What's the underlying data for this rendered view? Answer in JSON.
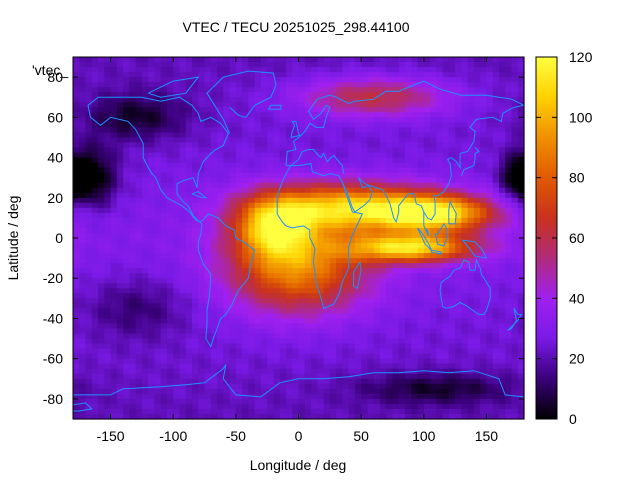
{
  "chart_data": {
    "type": "heatmap",
    "title": "VTEC / TECU 20251025_298.44100",
    "xlabel": "Longitude / deg",
    "ylabel": "Latitude / deg",
    "key_label": "'vtec_",
    "xlim": [
      -180,
      180
    ],
    "ylim": [
      -90,
      90
    ],
    "xticks": [
      -150,
      -100,
      -50,
      0,
      50,
      100,
      150
    ],
    "yticks": [
      -80,
      -60,
      -40,
      -20,
      0,
      20,
      40,
      60,
      80
    ],
    "colorbar": {
      "range": [
        0,
        120
      ],
      "ticks": [
        0,
        20,
        40,
        60,
        80,
        100,
        120
      ],
      "palette": [
        "#000000",
        "#3a007a",
        "#7a1ae6",
        "#a020f0",
        "#b02b7a",
        "#c8321e",
        "#e05a00",
        "#f09000",
        "#ffd000",
        "#ffff40"
      ]
    },
    "grid": false,
    "legend": "top-left",
    "coastline_color": "#1e90ff",
    "features": [
      {
        "lon": 40,
        "lat": 15,
        "vtec": 75,
        "sx": 70,
        "sy": 12
      },
      {
        "lon": 110,
        "lat": 12,
        "vtec": 78,
        "sx": 45,
        "sy": 9
      },
      {
        "lon": 90,
        "lat": -5,
        "vtec": 80,
        "sx": 50,
        "sy": 7
      },
      {
        "lon": 0,
        "lat": -15,
        "vtec": 62,
        "sx": 55,
        "sy": 22
      },
      {
        "lon": -20,
        "lat": 5,
        "vtec": 60,
        "sx": 30,
        "sy": 15
      },
      {
        "lon": 60,
        "lat": 70,
        "vtec": 38,
        "sx": 60,
        "sy": 10
      },
      {
        "lon": -165,
        "lat": 30,
        "vtec": -30,
        "sx": 20,
        "sy": 15
      },
      {
        "lon": 175,
        "lat": 30,
        "vtec": -25,
        "sx": 15,
        "sy": 12
      },
      {
        "lon": -130,
        "lat": 60,
        "vtec": -20,
        "sx": 40,
        "sy": 12
      },
      {
        "lon": -130,
        "lat": -35,
        "vtec": -14,
        "sx": 40,
        "sy": 15
      },
      {
        "lon": 110,
        "lat": -75,
        "vtec": -18,
        "sx": 60,
        "sy": 8
      }
    ]
  }
}
